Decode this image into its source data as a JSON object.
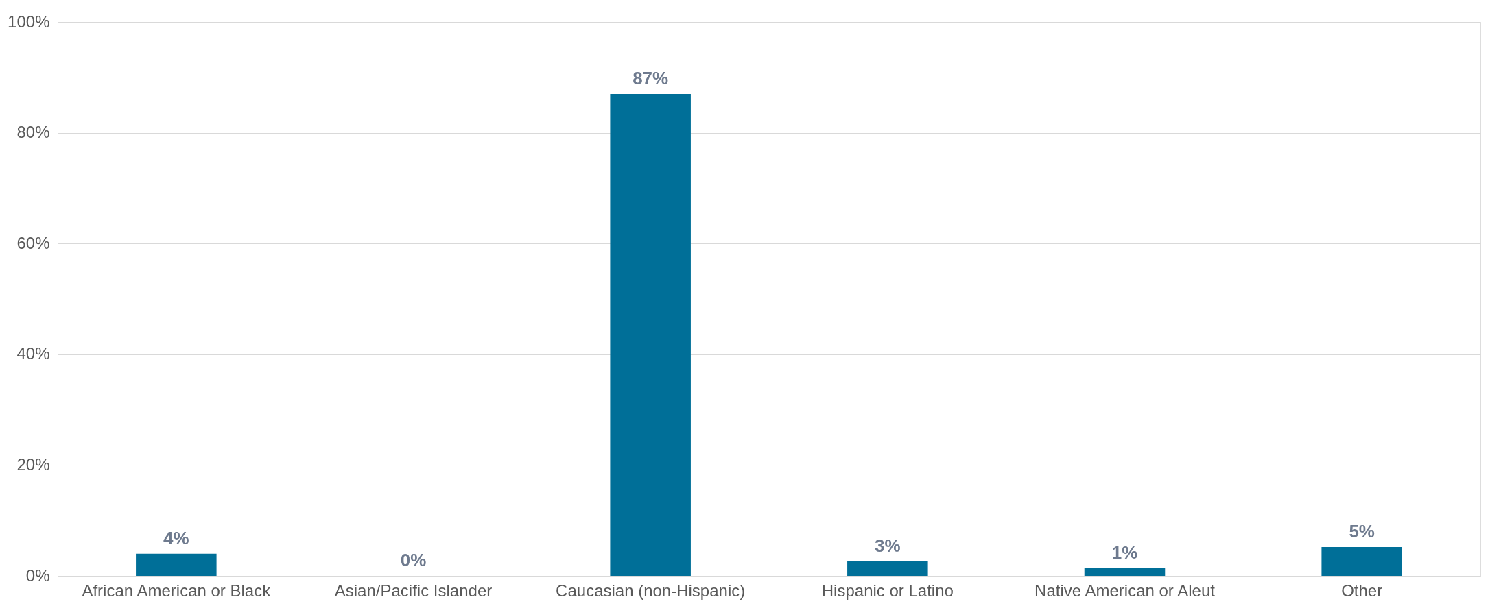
{
  "chart_data": {
    "type": "bar",
    "categories": [
      "African American or Black",
      "Asian/Pacific Islander",
      "Caucasian (non-Hispanic)",
      "Hispanic or Latino",
      "Native American or Aleut",
      "Other"
    ],
    "values": [
      4,
      0,
      87,
      2.6,
      1.4,
      5.2
    ],
    "value_labels": [
      "4%",
      "0%",
      "87%",
      "3%",
      "1%",
      "5%"
    ],
    "color": "#006f98",
    "ylim": [
      0,
      100
    ],
    "yticks": [
      {
        "value": 0,
        "label": "0%"
      },
      {
        "value": 20,
        "label": "20%"
      },
      {
        "value": 40,
        "label": "40%"
      },
      {
        "value": 60,
        "label": "60%"
      },
      {
        "value": 80,
        "label": "80%"
      },
      {
        "value": 100,
        "label": "100%"
      }
    ],
    "grid": "y"
  }
}
